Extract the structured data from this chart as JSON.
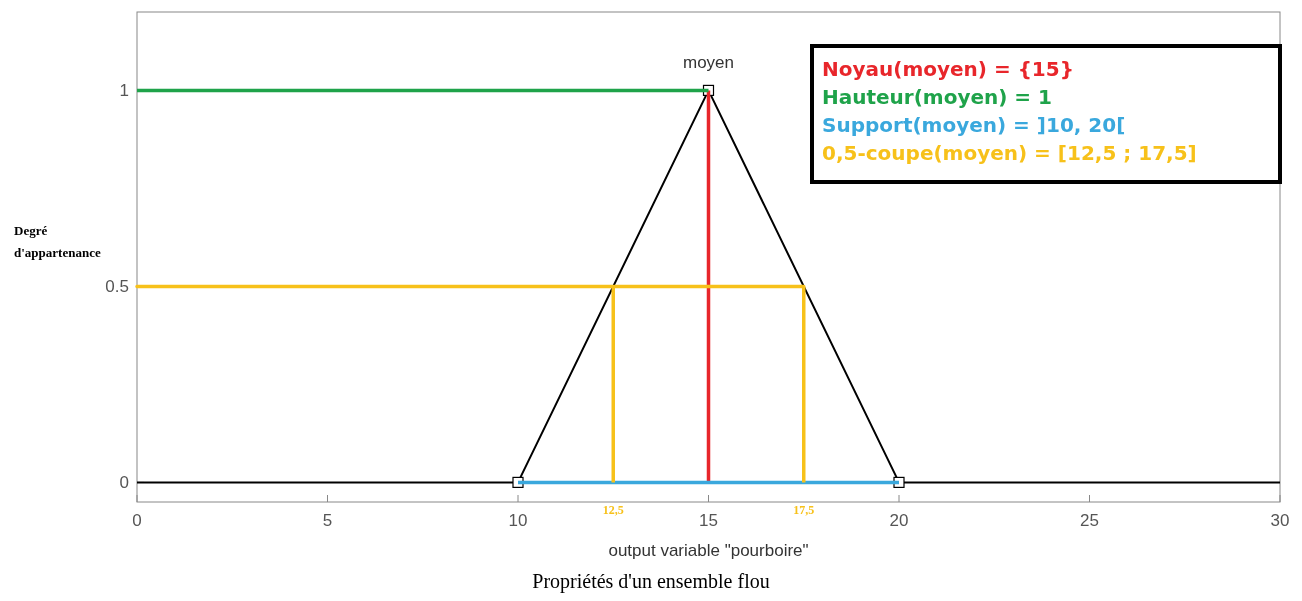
{
  "chart_data": {
    "type": "line",
    "xlabel": "output variable \"pourboire\"",
    "ylabel": "Degré d'appartenance",
    "xlim": [
      0,
      30
    ],
    "ylim": [
      -0.05,
      1.2
    ],
    "xticks": [
      0,
      5,
      10,
      15,
      20,
      25,
      30
    ],
    "yticks": [
      0,
      0.5,
      1
    ],
    "grid": false,
    "legend": "top right",
    "line_style": "solid",
    "series": [
      {
        "color": "#000000",
        "x": [
          0,
          10,
          15,
          20,
          30
        ],
        "values": [
          0,
          0,
          1,
          0,
          0
        ]
      },
      {
        "type": "scatter",
        "marker": "square",
        "color": "#000000",
        "x": [
          10,
          15,
          20
        ],
        "values": [
          0,
          1,
          0
        ]
      },
      {
        "name": "Noyau(moyen) = {15}",
        "color": "#e8262b",
        "x": [
          15,
          15
        ],
        "values": [
          0,
          1
        ]
      },
      {
        "name": "Hauteur(moyen) = 1",
        "color": "#1fa34a",
        "x": [
          0,
          15
        ],
        "values": [
          1,
          1
        ]
      },
      {
        "name": "Support(moyen) = ]10, 20[",
        "color": "#3aa8dd",
        "x": [
          10,
          20
        ],
        "values": [
          0,
          0
        ]
      },
      {
        "name": "0,5-coupe(moyen) = [12,5 ; 17,5]",
        "color": "#f7c11a",
        "x": [
          12.5,
          12.5,
          0,
          17.5,
          17.5
        ],
        "values": [
          0,
          0.5,
          0.5,
          0.5,
          0
        ]
      }
    ],
    "annotations": [
      {
        "text": "moyen",
        "x": 15,
        "y": 1
      },
      {
        "text": "12,5",
        "x": 12.5,
        "y": 0
      },
      {
        "text": "17,5",
        "x": 17.5,
        "y": 0
      },
      "Propriétés d'un ensemble flou"
    ]
  }
}
